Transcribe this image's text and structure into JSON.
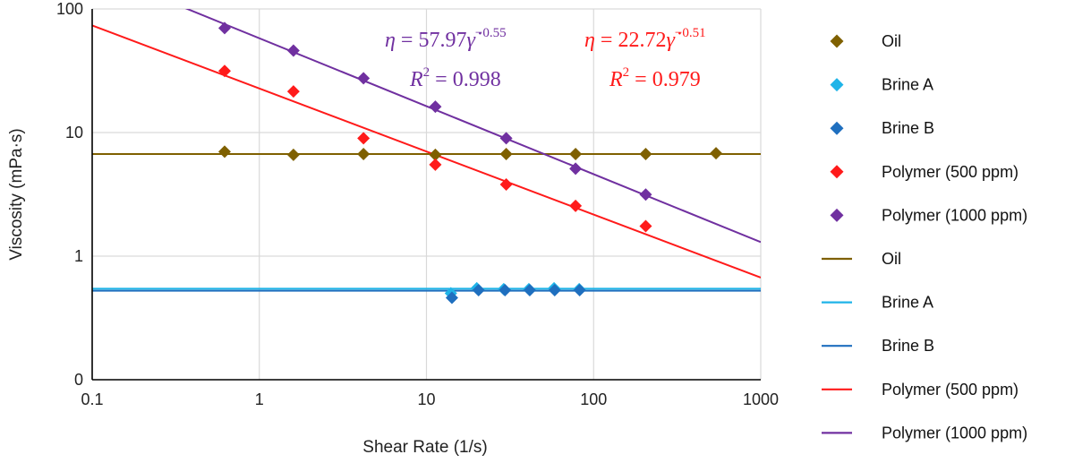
{
  "chart_data": {
    "type": "scatter",
    "xlabel": "Shear Rate (1/s)",
    "ylabel": "Viscosity (mPa·s)",
    "x_scale": "log",
    "y_scale": "log",
    "xlim": [
      0.1,
      1000
    ],
    "ylim": [
      0.1,
      100
    ],
    "x_ticks": [
      {
        "value": 0.1,
        "label": "0.1"
      },
      {
        "value": 1,
        "label": "1"
      },
      {
        "value": 10,
        "label": "10"
      },
      {
        "value": 100,
        "label": "100"
      },
      {
        "value": 1000,
        "label": "1000"
      }
    ],
    "y_ticks": [
      {
        "value": 0.1,
        "label": "0"
      },
      {
        "value": 1,
        "label": "1"
      },
      {
        "value": 10,
        "label": "10"
      },
      {
        "value": 100,
        "label": "100"
      }
    ],
    "grid": true,
    "legend_position": "right",
    "series": [
      {
        "name": "Oil",
        "marker": "diamond",
        "color": "#7f6000",
        "points": [
          [
            0.62,
            7.0
          ],
          [
            1.6,
            6.6
          ],
          [
            4.2,
            6.7
          ],
          [
            11.3,
            6.6
          ],
          [
            30,
            6.7
          ],
          [
            78,
            6.7
          ],
          [
            205,
            6.7
          ],
          [
            540,
            6.8
          ]
        ]
      },
      {
        "name": "Brine A",
        "marker": "diamond",
        "color": "#1fb4e8",
        "points": [
          [
            14,
            0.5
          ],
          [
            20,
            0.55
          ],
          [
            29,
            0.54
          ],
          [
            41,
            0.54
          ],
          [
            58,
            0.55
          ],
          [
            82,
            0.54
          ]
        ]
      },
      {
        "name": "Brine B",
        "marker": "diamond",
        "color": "#1f6fbf",
        "points": [
          [
            14.2,
            0.46
          ],
          [
            20.5,
            0.53
          ],
          [
            29.5,
            0.53
          ],
          [
            41.5,
            0.53
          ],
          [
            58.5,
            0.53
          ],
          [
            82.5,
            0.53
          ]
        ]
      },
      {
        "name": "Polymer (500 ppm)",
        "marker": "diamond",
        "color": "#ff1a1a",
        "points": [
          [
            0.62,
            31.5
          ],
          [
            1.6,
            21.5
          ],
          [
            4.2,
            9.0
          ],
          [
            11.3,
            5.5
          ],
          [
            30,
            3.8
          ],
          [
            78,
            2.55
          ],
          [
            205,
            1.75
          ]
        ]
      },
      {
        "name": "Polymer (1000 ppm)",
        "marker": "diamond",
        "color": "#7030a0",
        "points": [
          [
            0.62,
            70
          ],
          [
            1.6,
            46
          ],
          [
            4.2,
            27.5
          ],
          [
            11.3,
            16.2
          ],
          [
            30,
            9.0
          ],
          [
            78,
            5.1
          ],
          [
            205,
            3.15
          ]
        ]
      }
    ],
    "fit_lines": [
      {
        "name": "Oil",
        "color": "#7f6000",
        "type": "constant",
        "value": 6.7
      },
      {
        "name": "Brine A",
        "color": "#1fb4e8",
        "type": "constant",
        "value": 0.545
      },
      {
        "name": "Brine B",
        "color": "#1f6fbf",
        "type": "constant",
        "value": 0.525
      },
      {
        "name": "Polymer (500 ppm)",
        "color": "#ff1a1a",
        "type": "power",
        "a": 22.72,
        "b": -0.51
      },
      {
        "name": "Polymer (1000 ppm)",
        "color": "#7030a0",
        "type": "power",
        "a": 57.97,
        "b": -0.55
      }
    ],
    "annotations": [
      {
        "series": "Polymer (1000 ppm)",
        "color": "#7030a0",
        "coefficient": "57.97",
        "exponent": "−0.55",
        "r2": "0.998"
      },
      {
        "series": "Polymer (500 ppm)",
        "color": "#ff1a1a",
        "coefficient": "22.72",
        "exponent": "−0.51",
        "r2": "0.979"
      }
    ]
  }
}
